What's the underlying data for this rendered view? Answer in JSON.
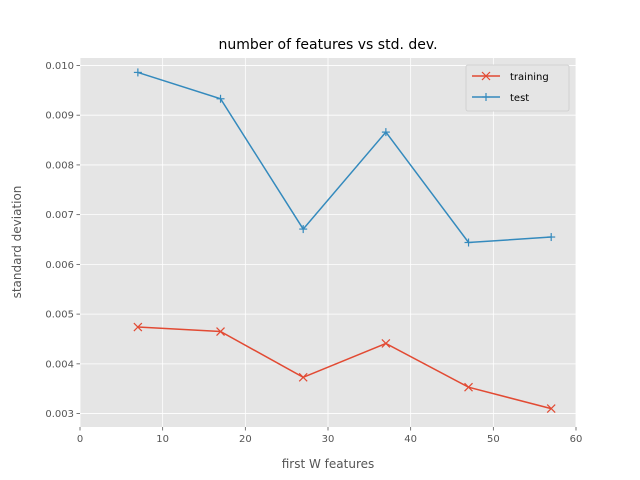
{
  "chart_data": {
    "type": "line",
    "title": "number of features vs std. dev.",
    "xlabel": "first W features",
    "ylabel": "standard deviation",
    "xlim": [
      0,
      60
    ],
    "ylim": [
      0.00273,
      0.01015
    ],
    "xticks": [
      0,
      10,
      20,
      30,
      40,
      50,
      60
    ],
    "xtick_labels": [
      "0",
      "10",
      "20",
      "30",
      "40",
      "50",
      "60"
    ],
    "yticks": [
      0.003,
      0.004,
      0.005,
      0.006,
      0.007,
      0.008,
      0.009,
      0.01
    ],
    "ytick_labels": [
      "0.003",
      "0.004",
      "0.005",
      "0.006",
      "0.007",
      "0.008",
      "0.009",
      "0.010"
    ],
    "grid": true,
    "legend_position": "top-right",
    "x": [
      7,
      17,
      27,
      37,
      47,
      57
    ],
    "series": [
      {
        "name": "training",
        "marker": "x",
        "color": "#E24A33",
        "values": [
          0.00474,
          0.00465,
          0.00373,
          0.00441,
          0.00353,
          0.0031
        ]
      },
      {
        "name": "test",
        "marker": "+",
        "color": "#348ABD",
        "values": [
          0.00986,
          0.00933,
          0.00671,
          0.00866,
          0.00644,
          0.00655
        ]
      }
    ]
  },
  "style": {
    "plot_background": "#E5E5E5",
    "grid_color": "#FFFFFF",
    "text_color": "#555555"
  }
}
